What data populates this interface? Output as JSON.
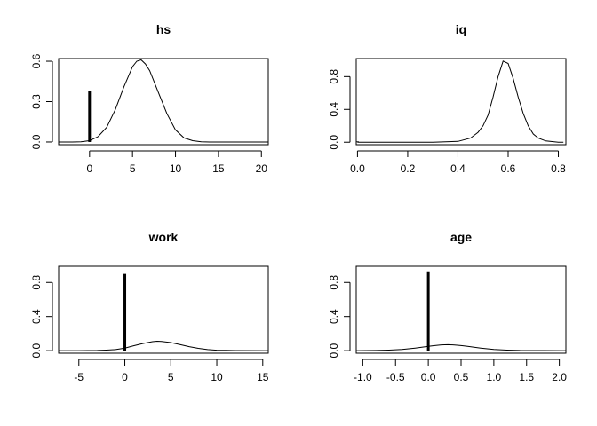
{
  "chart_data": [
    {
      "type": "line",
      "title": "hs",
      "xlabel": "",
      "ylabel": "",
      "xlim": [
        -3.6,
        20.8
      ],
      "ylim": [
        -0.02,
        0.62
      ],
      "xticks": [
        0,
        5,
        10,
        15,
        20
      ],
      "yticks": [
        0.0,
        0.3,
        0.6
      ],
      "xtick_labels": [
        "0",
        "5",
        "10",
        "15",
        "20"
      ],
      "ytick_labels": [
        "0.0",
        "0.3",
        "0.6"
      ],
      "grid": false,
      "series": [
        {
          "style": "line",
          "x": [
            -3.6,
            -2,
            -1,
            0,
            1,
            2,
            3,
            4,
            5,
            5.5,
            6,
            6.5,
            7,
            8,
            9,
            10,
            11,
            12,
            13,
            14,
            16,
            18,
            20.8
          ],
          "y": [
            0.0,
            0.0,
            0.002,
            0.01,
            0.04,
            0.11,
            0.24,
            0.41,
            0.56,
            0.6,
            0.61,
            0.58,
            0.53,
            0.37,
            0.21,
            0.09,
            0.03,
            0.01,
            0.002,
            0.0,
            0.0,
            0.0,
            0.0
          ]
        },
        {
          "style": "spike",
          "x": [
            0
          ],
          "y": [
            0.38
          ]
        }
      ]
    },
    {
      "type": "line",
      "title": "iq",
      "xlabel": "",
      "ylabel": "",
      "xlim": [
        -0.005,
        0.83
      ],
      "ylim": [
        -0.03,
        1.02
      ],
      "xticks": [
        0.0,
        0.2,
        0.4,
        0.6,
        0.8
      ],
      "yticks": [
        0.0,
        0.4,
        0.8
      ],
      "xtick_labels": [
        "0.0",
        "0.2",
        "0.4",
        "0.6",
        "0.8"
      ],
      "ytick_labels": [
        "0.0",
        "0.4",
        "0.8"
      ],
      "grid": false,
      "series": [
        {
          "style": "line",
          "x": [
            0.0,
            0.3,
            0.4,
            0.45,
            0.48,
            0.5,
            0.52,
            0.54,
            0.56,
            0.58,
            0.6,
            0.62,
            0.64,
            0.66,
            0.68,
            0.7,
            0.72,
            0.75,
            0.8,
            0.82
          ],
          "y": [
            0.0,
            0.0,
            0.01,
            0.05,
            0.12,
            0.2,
            0.33,
            0.55,
            0.8,
            0.99,
            0.96,
            0.78,
            0.55,
            0.35,
            0.2,
            0.1,
            0.05,
            0.015,
            0.0,
            0.0
          ]
        },
        {
          "style": "spike",
          "x": [
            0.0
          ],
          "y": [
            0.01
          ]
        }
      ]
    },
    {
      "type": "line",
      "title": "work",
      "xlabel": "",
      "ylabel": "",
      "xlim": [
        -7.2,
        15.6
      ],
      "ylim": [
        -0.03,
        0.99
      ],
      "xticks": [
        -5,
        0,
        5,
        10,
        15
      ],
      "yticks": [
        0.0,
        0.4,
        0.8
      ],
      "xtick_labels": [
        "-5",
        "0",
        "5",
        "10",
        "15"
      ],
      "ytick_labels": [
        "0.0",
        "0.4",
        "0.8"
      ],
      "grid": false,
      "series": [
        {
          "style": "line",
          "x": [
            -7.2,
            -5,
            -3,
            -2,
            -1,
            0,
            1,
            2,
            3,
            3.5,
            4,
            5,
            6,
            7,
            8,
            9,
            10,
            12,
            15.6
          ],
          "y": [
            0.0,
            0.0,
            0.002,
            0.006,
            0.013,
            0.03,
            0.058,
            0.085,
            0.105,
            0.11,
            0.108,
            0.095,
            0.072,
            0.047,
            0.027,
            0.013,
            0.005,
            0.001,
            0.0
          ]
        },
        {
          "style": "spike",
          "x": [
            0
          ],
          "y": [
            0.9
          ]
        }
      ]
    },
    {
      "type": "line",
      "title": "age",
      "xlabel": "",
      "ylabel": "",
      "xlim": [
        -1.1,
        2.1
      ],
      "ylim": [
        -0.03,
        0.99
      ],
      "xticks": [
        -1.0,
        -0.5,
        0.0,
        0.5,
        1.0,
        1.5,
        2.0
      ],
      "yticks": [
        0.0,
        0.4,
        0.8
      ],
      "xtick_labels": [
        "-1.0",
        "-0.5",
        "0.0",
        "0.5",
        "1.0",
        "1.5",
        "2.0"
      ],
      "ytick_labels": [
        "0.0",
        "0.4",
        "0.8"
      ],
      "grid": false,
      "series": [
        {
          "style": "line",
          "x": [
            -1.1,
            -0.8,
            -0.6,
            -0.4,
            -0.2,
            0.0,
            0.1,
            0.2,
            0.3,
            0.4,
            0.5,
            0.6,
            0.8,
            1.0,
            1.2,
            1.4,
            2.1
          ],
          "y": [
            0.0,
            0.002,
            0.006,
            0.014,
            0.03,
            0.05,
            0.06,
            0.068,
            0.07,
            0.067,
            0.06,
            0.05,
            0.03,
            0.014,
            0.006,
            0.002,
            0.0
          ]
        },
        {
          "style": "spike",
          "x": [
            0.0
          ],
          "y": [
            0.93
          ]
        }
      ]
    }
  ]
}
